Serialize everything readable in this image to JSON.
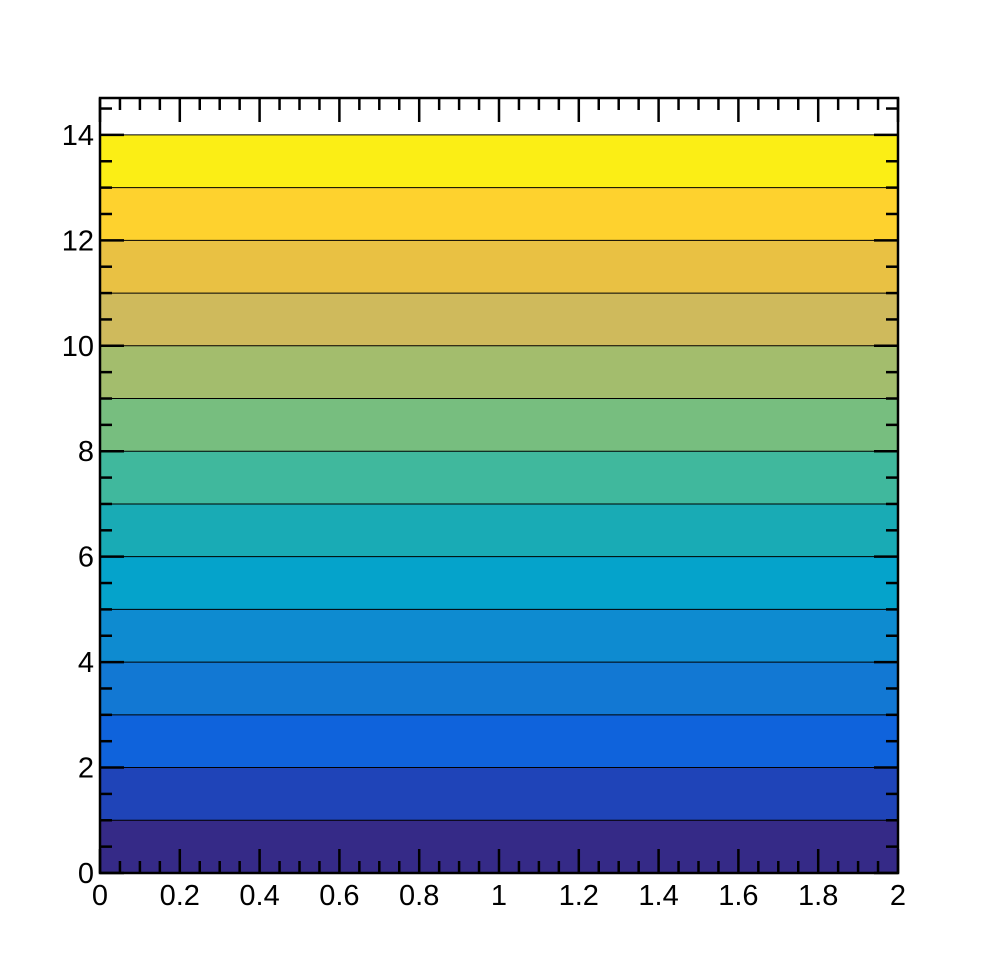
{
  "chart_data": {
    "type": "heatmap",
    "title": "",
    "xlabel": "",
    "ylabel": "",
    "xlim": [
      0,
      2
    ],
    "ylim": [
      0,
      14.7
    ],
    "x_tick_labels": [
      {
        "value": 0,
        "label": "0"
      },
      {
        "value": 0.2,
        "label": "0.2"
      },
      {
        "value": 0.4,
        "label": "0.4"
      },
      {
        "value": 0.6,
        "label": "0.6"
      },
      {
        "value": 0.8,
        "label": "0.8"
      },
      {
        "value": 1,
        "label": "1"
      },
      {
        "value": 1.2,
        "label": "1.2"
      },
      {
        "value": 1.4,
        "label": "1.4"
      },
      {
        "value": 1.6,
        "label": "1.6"
      },
      {
        "value": 1.8,
        "label": "1.8"
      },
      {
        "value": 2,
        "label": "2"
      }
    ],
    "y_tick_labels": [
      {
        "value": 0,
        "label": "0"
      },
      {
        "value": 2,
        "label": "2"
      },
      {
        "value": 4,
        "label": "4"
      },
      {
        "value": 6,
        "label": "6"
      },
      {
        "value": 8,
        "label": "8"
      },
      {
        "value": 10,
        "label": "10"
      },
      {
        "value": 12,
        "label": "12"
      },
      {
        "value": 14,
        "label": "14"
      }
    ],
    "x_minor_step": 0.05,
    "y_minor_step": 0.5,
    "grid": false,
    "legend": "none",
    "bands": [
      {
        "y0": 0,
        "y1": 1,
        "color": "#352a87"
      },
      {
        "y0": 1,
        "y1": 2,
        "color": "#1f44b8"
      },
      {
        "y0": 2,
        "y1": 3,
        "color": "#0f63dc"
      },
      {
        "y0": 3,
        "y1": 4,
        "color": "#1278d3"
      },
      {
        "y0": 4,
        "y1": 5,
        "color": "#0e8bd0"
      },
      {
        "y0": 5,
        "y1": 6,
        "color": "#05a3cb"
      },
      {
        "y0": 6,
        "y1": 7,
        "color": "#19abb5"
      },
      {
        "y0": 7,
        "y1": 8,
        "color": "#40b89d"
      },
      {
        "y0": 8,
        "y1": 9,
        "color": "#77be7f"
      },
      {
        "y0": 9,
        "y1": 10,
        "color": "#a3bd6d"
      },
      {
        "y0": 10,
        "y1": 11,
        "color": "#cfba5c"
      },
      {
        "y0": 11,
        "y1": 12,
        "color": "#e9c143"
      },
      {
        "y0": 12,
        "y1": 13,
        "color": "#fed22e"
      },
      {
        "y0": 13,
        "y1": 14,
        "color": "#fbee15"
      }
    ]
  }
}
